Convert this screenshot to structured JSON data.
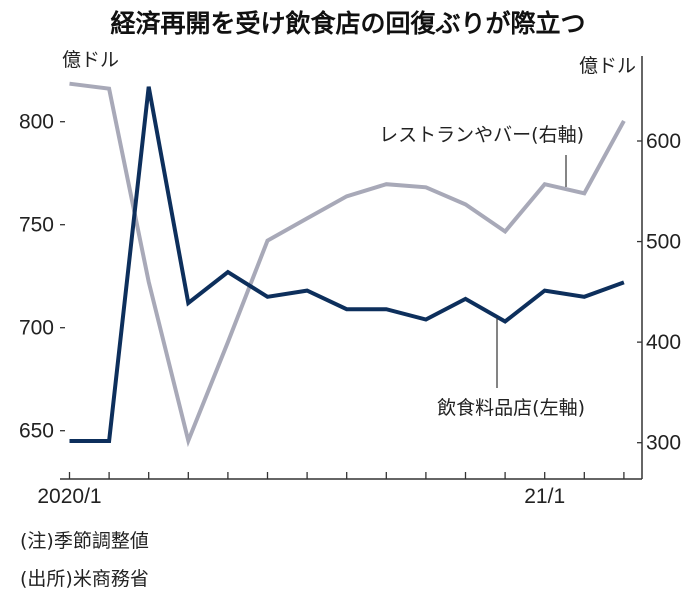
{
  "chart_data": {
    "type": "line",
    "title": "経済再開を受け飲食店の回復ぶりが際立つ",
    "left_unit": "億ドル",
    "right_unit": "億ドル",
    "x_tick_labels": [
      "2020/1",
      "21/1"
    ],
    "x": [
      "2020/1",
      "2020/2",
      "2020/3",
      "2020/4",
      "2020/5",
      "2020/6",
      "2020/7",
      "2020/8",
      "2020/9",
      "2020/10",
      "2020/11",
      "2020/12",
      "2021/1",
      "2021/2",
      "2021/3"
    ],
    "left_axis": {
      "ylim": [
        638,
        830
      ],
      "ticks": [
        650,
        700,
        750,
        800
      ]
    },
    "right_axis": {
      "ylim": [
        262,
        668
      ],
      "ticks": [
        300,
        400,
        500,
        600
      ]
    },
    "grid": false,
    "series": [
      {
        "name": "飲食料品店(左軸)",
        "axis": "left",
        "color": "#0d2f5c",
        "values": [
          645,
          645,
          817,
          712,
          727,
          715,
          718,
          709,
          709,
          704,
          714,
          703,
          718,
          715,
          722
        ]
      },
      {
        "name": "レストランやバー(右軸)",
        "axis": "right",
        "color": "#a8a9b8",
        "values": [
          657,
          652,
          460,
          302,
          400,
          501,
          523,
          545,
          557,
          554,
          537,
          510,
          557,
          548,
          620
        ]
      }
    ],
    "notes": [
      "(注)季節調整値",
      "(出所)米商務省"
    ]
  }
}
